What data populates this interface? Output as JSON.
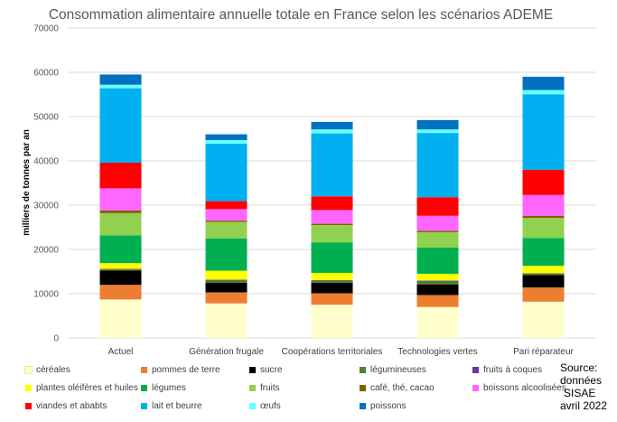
{
  "chart_data": {
    "type": "stacked-bar",
    "title": "Consommation alimentaire annuelle totale en France selon les scénarios ADEME",
    "ylabel": "milliers de tonnes par an",
    "xlabel": "",
    "ylim": [
      0,
      70000
    ],
    "yticks": [
      0,
      10000,
      20000,
      30000,
      40000,
      50000,
      60000,
      70000
    ],
    "categories": [
      "Actuel",
      "Génération frugale",
      "Coopérations territoriales",
      "Technologies vertes",
      "Pari réparateur"
    ],
    "series": [
      {
        "name": "céréales",
        "color": "#ffffcc",
        "values": [
          8700,
          7800,
          7500,
          7000,
          8200
        ]
      },
      {
        "name": "pommes de terre",
        "color": "#ed7d31",
        "values": [
          3300,
          2500,
          2600,
          2700,
          3200
        ]
      },
      {
        "name": "sucre",
        "color": "#000000",
        "values": [
          3200,
          2200,
          2400,
          2400,
          2800
        ]
      },
      {
        "name": "légumineuses",
        "color": "#507e32",
        "values": [
          300,
          600,
          500,
          800,
          300
        ]
      },
      {
        "name": "fruits à coques",
        "color": "#7030a0",
        "values": [
          100,
          100,
          100,
          100,
          100
        ]
      },
      {
        "name": "plantes oléifères et huiles",
        "color": "#ffff00",
        "values": [
          1300,
          2000,
          1600,
          1500,
          1700
        ]
      },
      {
        "name": "légumes",
        "color": "#00b050",
        "values": [
          6300,
          7300,
          6900,
          5900,
          6300
        ]
      },
      {
        "name": "fruits",
        "color": "#92d050",
        "values": [
          5000,
          3700,
          3900,
          3500,
          4500
        ]
      },
      {
        "name": "café, thé, cacao",
        "color": "#7f6000",
        "values": [
          600,
          300,
          300,
          300,
          500
        ]
      },
      {
        "name": "boissons alcoolisées",
        "color": "#ff66ff",
        "values": [
          5000,
          2600,
          3100,
          3400,
          4700
        ]
      },
      {
        "name": "viandes et ababts",
        "color": "#ff0000",
        "values": [
          5800,
          1800,
          3100,
          4200,
          5700
        ]
      },
      {
        "name": "lait et beurre",
        "color": "#00b0f0",
        "values": [
          16800,
          13000,
          14200,
          14500,
          17000
        ]
      },
      {
        "name": "œufs",
        "color": "#66ffff",
        "values": [
          800,
          800,
          900,
          800,
          1000
        ]
      },
      {
        "name": "poissons",
        "color": "#0070c0",
        "values": [
          2300,
          1300,
          1700,
          2100,
          3000
        ]
      }
    ]
  },
  "source": {
    "line1": "Source:",
    "line2": "données",
    "line3": "SISAE",
    "line4": "avril 2022"
  }
}
